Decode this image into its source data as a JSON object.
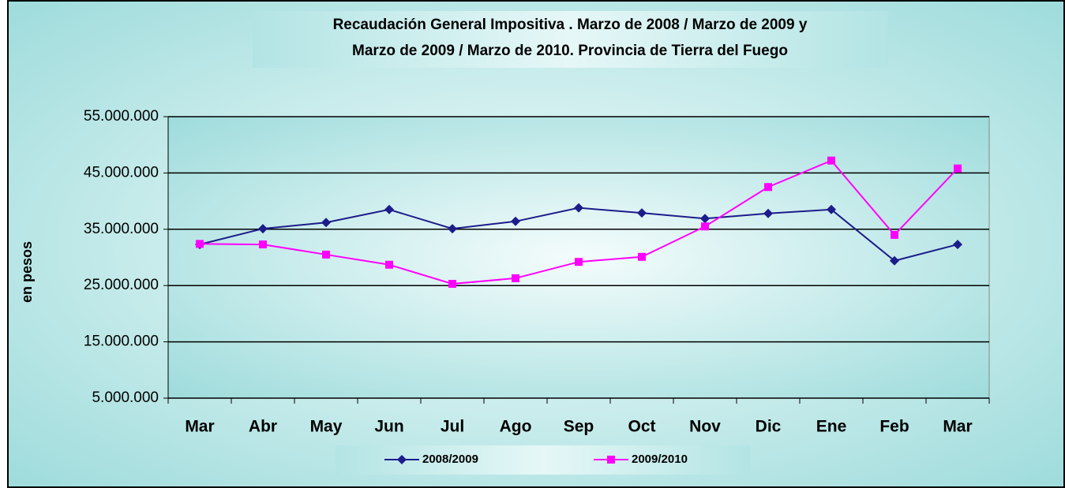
{
  "chart_data": {
    "type": "line",
    "title": [
      "Recaudación General Impositiva . Marzo de 2008 / Marzo de 2009  y",
      "Marzo de 2009 / Marzo de 2010. Provincia de Tierra del Fuego"
    ],
    "y_label": "en pesos",
    "categories": [
      "Mar",
      "Abr",
      "May",
      "Jun",
      "Jul",
      "Ago",
      "Sep",
      "Oct",
      "Nov",
      "Dic",
      "Ene",
      "Feb",
      "Mar"
    ],
    "series": [
      {
        "name": "2008/2009",
        "color": "#1c1c8a",
        "marker": "diamond",
        "values": [
          32300000,
          35100000,
          36200000,
          38500000,
          35100000,
          36400000,
          38800000,
          37900000,
          36900000,
          37800000,
          38500000,
          29400000,
          32300000
        ]
      },
      {
        "name": "2009/2010",
        "color": "#ff00ff",
        "marker": "square",
        "values": [
          32400000,
          32300000,
          30500000,
          28700000,
          25300000,
          26300000,
          29200000,
          30100000,
          35500000,
          42500000,
          47200000,
          34000000,
          45800000
        ]
      }
    ],
    "ylim": [
      5000000,
      55000000
    ],
    "yticks": [
      {
        "value": 5000000,
        "label": "5.000.000"
      },
      {
        "value": 15000000,
        "label": "15.000.000"
      },
      {
        "value": 25000000,
        "label": "25.000.000"
      },
      {
        "value": 35000000,
        "label": "35.000.000"
      },
      {
        "value": 45000000,
        "label": "45.000.000"
      },
      {
        "value": 55000000,
        "label": "55.000.000"
      }
    ],
    "grid": true,
    "legend": "bottom"
  }
}
